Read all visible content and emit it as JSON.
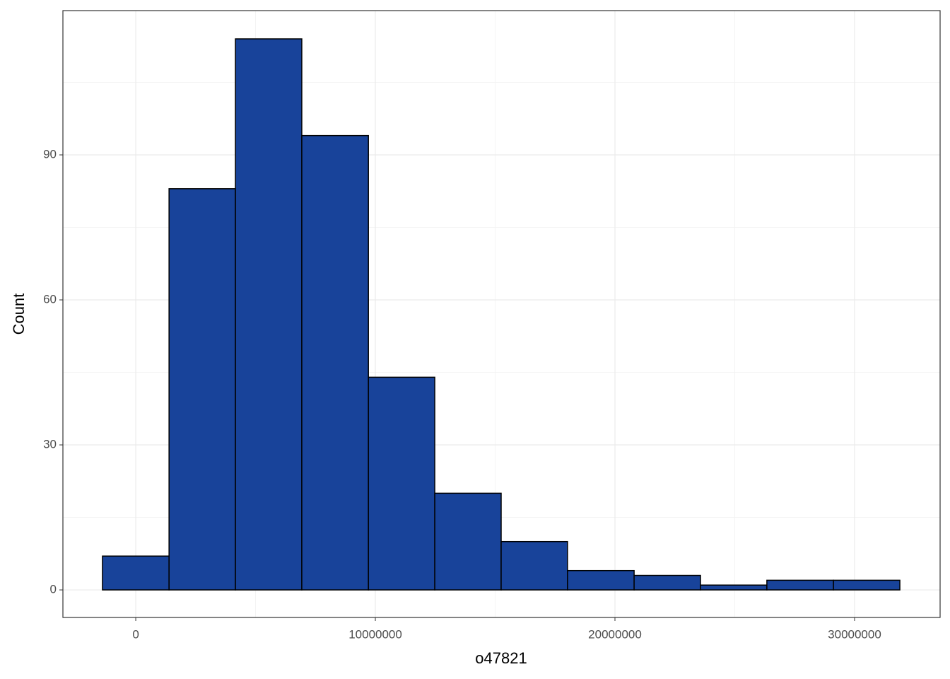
{
  "chart_data": {
    "type": "histogram",
    "x_label": "o47821",
    "y_label": "Count",
    "bins": [
      -1390000,
      1390000,
      4160000,
      6930000,
      9710000,
      12480000,
      15250000,
      18020000,
      20800000,
      23570000,
      26340000,
      29120000,
      31890000
    ],
    "values": [
      7,
      83,
      114,
      94,
      44,
      20,
      10,
      4,
      3,
      1,
      2,
      2
    ],
    "color": "#18439a",
    "xlim": [
      -3040000,
      33570000
    ],
    "xticks": [
      0,
      10000000,
      20000000,
      30000000
    ],
    "ylim": [
      -5.7,
      119.85
    ],
    "yticks": [
      0,
      30,
      60,
      90
    ],
    "grid": true
  }
}
